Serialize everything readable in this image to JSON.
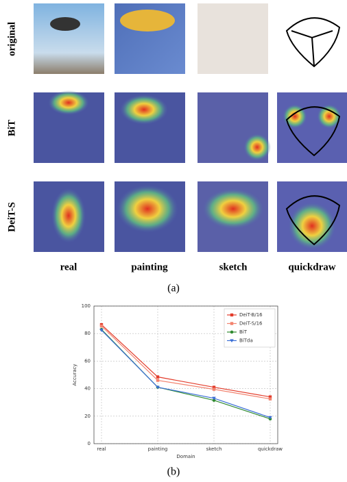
{
  "figure_a": {
    "rows": [
      "original",
      "BiT",
      "DeiT-S"
    ],
    "columns": [
      "real",
      "painting",
      "sketch",
      "quickdraw"
    ],
    "caption": "(a)"
  },
  "chart_data": {
    "type": "line",
    "xlabel": "Domain",
    "ylabel": "Accuracy",
    "categories": [
      "real",
      "painting",
      "sketch",
      "quickdraw"
    ],
    "ylim": [
      0,
      100
    ],
    "yticks": [
      0,
      20,
      40,
      60,
      80,
      100
    ],
    "grid": true,
    "legend": "upper right",
    "series": [
      {
        "name": "DeiT-B/16",
        "color": "#e33b2a",
        "marker": "square",
        "values": [
          86.5,
          48.5,
          41,
          34
        ]
      },
      {
        "name": "DeiT-S/16",
        "color": "#f2826e",
        "marker": "square",
        "values": [
          85.5,
          46,
          39.5,
          32.5
        ]
      },
      {
        "name": "BiT",
        "color": "#2f8a2f",
        "marker": "circle",
        "values": [
          83,
          41,
          31.5,
          18
        ]
      },
      {
        "name": "BiTda",
        "color": "#3b6fd6",
        "marker": "triangle-down",
        "values": [
          82.5,
          41,
          33,
          19
        ]
      }
    ],
    "caption": "(b)"
  }
}
